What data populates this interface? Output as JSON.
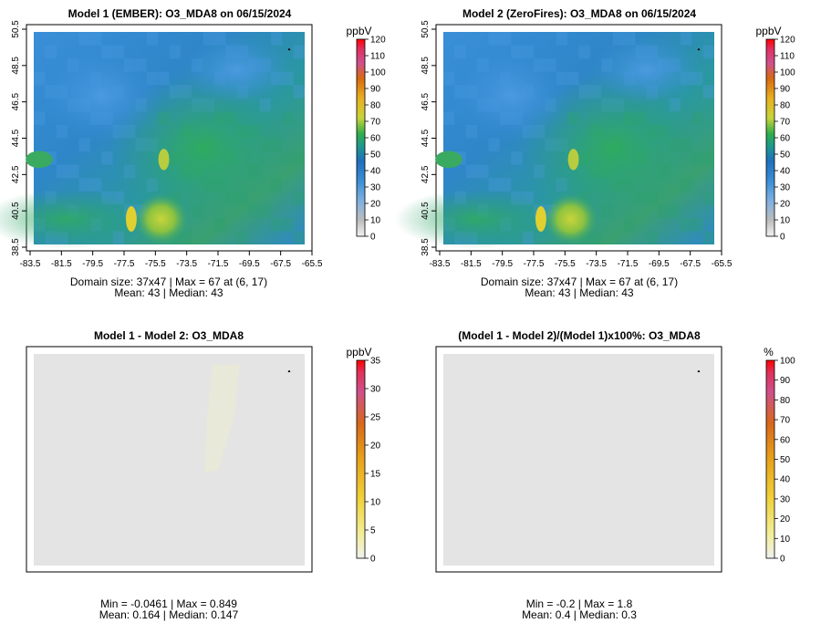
{
  "panels": [
    {
      "id": "p1",
      "title": "Model 1 (EMBER): O3_MDA8 on 06/15/2024",
      "kind": "field",
      "axes": true,
      "lon_ticks": [
        "-83.5",
        "-81.5",
        "-79.5",
        "-77.5",
        "-75.5",
        "-73.5",
        "-71.5",
        "-69.5",
        "-67.5",
        "-65.5"
      ],
      "lat_ticks": [
        "38.5",
        "40.5",
        "42.5",
        "44.5",
        "46.5",
        "48.5",
        "50.5"
      ],
      "stats_line1": "Domain size: 37x47 | Max = 67 at (6, 17)",
      "stats_line2": "Mean: 43 |  Median: 43",
      "colorbar": {
        "unit": "ppbV",
        "ticks": [
          "0",
          "10",
          "20",
          "30",
          "40",
          "50",
          "60",
          "70",
          "80",
          "90",
          "100",
          "110",
          "120"
        ],
        "range": [
          0,
          120
        ],
        "scheme": "ozone"
      }
    },
    {
      "id": "p2",
      "title": "Model 2 (ZeroFires): O3_MDA8 on 06/15/2024",
      "kind": "field",
      "axes": true,
      "lon_ticks": [
        "-83.5",
        "-81.5",
        "-79.5",
        "-77.5",
        "-75.5",
        "-73.5",
        "-71.5",
        "-69.5",
        "-67.5",
        "-65.5"
      ],
      "lat_ticks": [
        "38.5",
        "40.5",
        "42.5",
        "44.5",
        "46.5",
        "48.5",
        "50.5"
      ],
      "stats_line1": "Domain size: 37x47 | Max = 67 at (6, 17)",
      "stats_line2": "Mean: 43 |  Median: 43",
      "colorbar": {
        "unit": "ppbV",
        "ticks": [
          "0",
          "10",
          "20",
          "30",
          "40",
          "50",
          "60",
          "70",
          "80",
          "90",
          "100",
          "110",
          "120"
        ],
        "range": [
          0,
          120
        ],
        "scheme": "ozone"
      }
    },
    {
      "id": "p3",
      "title": "Model 1 - Model 2: O3_MDA8",
      "kind": "diff",
      "axes": false,
      "stats_line1": "Min = -0.0461 | Max = 0.849",
      "stats_line2": "Mean: 0.164 |  Median: 0.147",
      "colorbar": {
        "unit": "ppbV",
        "ticks": [
          "0",
          "5",
          "10",
          "15",
          "20",
          "25",
          "30",
          "35"
        ],
        "range": [
          0,
          35
        ],
        "scheme": "diff"
      }
    },
    {
      "id": "p4",
      "title": "(Model 1 - Model 2)/(Model 1)x100%: O3_MDA8",
      "kind": "pct",
      "axes": false,
      "stats_line1": "Min = -0.2 | Max = 1.8",
      "stats_line2": "Mean: 0.4 |  Median: 0.3",
      "colorbar": {
        "unit": "%",
        "ticks": [
          "0",
          "10",
          "20",
          "30",
          "40",
          "50",
          "60",
          "70",
          "80",
          "90",
          "100"
        ],
        "range": [
          0,
          100
        ],
        "scheme": "diff"
      }
    }
  ],
  "colors": {
    "diff_fill": "#e4e4e4",
    "diff_plume": "#e9e9d9",
    "frame": "#000000",
    "coast": "#000000"
  }
}
